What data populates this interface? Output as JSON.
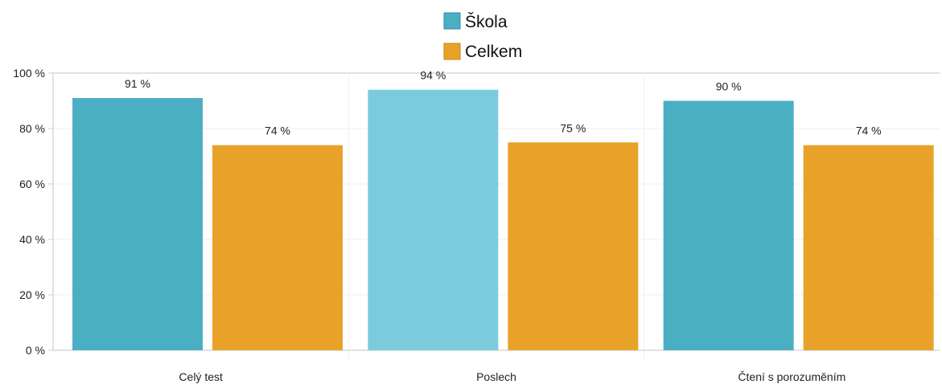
{
  "chart_data": {
    "type": "bar",
    "categories": [
      "Celý test",
      "Poslech",
      "Čtení s porozuměním"
    ],
    "series": [
      {
        "name": "Škola",
        "values": [
          91,
          94,
          90
        ],
        "labels": [
          "91 %",
          "94 %",
          "90 %"
        ],
        "color": "#4bafc4"
      },
      {
        "name": "Celkem",
        "values": [
          74,
          75,
          74
        ],
        "labels": [
          "74 %",
          "75 %",
          "74 %"
        ],
        "color": "#e9a229"
      }
    ],
    "highlight_color": "#7accdd",
    "highlighted_category": "Poslech",
    "yticks": [
      "0 %",
      "20 %",
      "40 %",
      "60 %",
      "80 %",
      "100 %"
    ],
    "ylim": [
      0,
      100
    ],
    "grid": true,
    "legend_position": "top-center",
    "title": "",
    "xlabel": "",
    "ylabel": ""
  }
}
